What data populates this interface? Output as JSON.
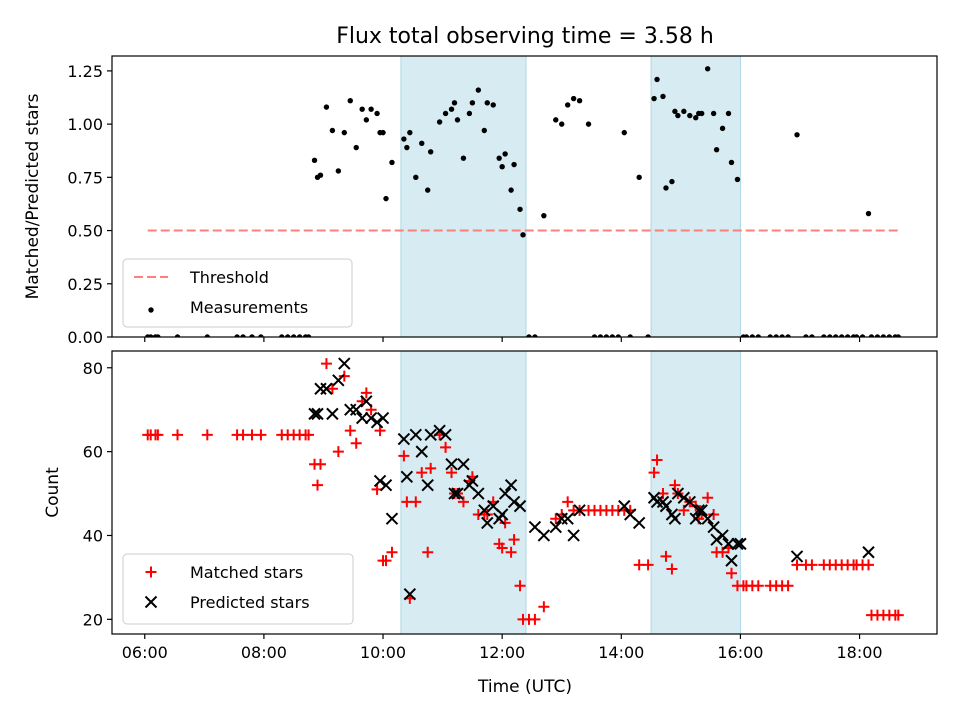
{
  "figure": {
    "title": "Flux total observing time = 3.58 h",
    "xlabel": "Time (UTC)"
  },
  "colors": {
    "shade": "#add8e6",
    "threshold": "#ff7f7f",
    "measurement": "#000000",
    "matched": "#ff0000",
    "predicted": "#000000"
  },
  "chart_data": [
    {
      "type": "scatter",
      "panel": "top",
      "title": "Flux total observing time = 3.58 h",
      "ylabel": "Matched/Predicted stars",
      "xlim": [
        5.45,
        19.3
      ],
      "ylim": [
        0,
        1.32
      ],
      "xticks": [
        6,
        8,
        10,
        12,
        14,
        16,
        18
      ],
      "xticklabels": [],
      "yticks": [
        0,
        0.25,
        0.5,
        0.75,
        1.0,
        1.25
      ],
      "yticklabels": [
        "0.00",
        "0.25",
        "0.50",
        "0.75",
        "1.00",
        "1.25"
      ],
      "shaded_intervals": [
        [
          10.3,
          12.4
        ],
        [
          14.5,
          16.0
        ]
      ],
      "legend": {
        "position": "lower left",
        "entries": [
          "Threshold",
          "Measurements"
        ]
      },
      "threshold": {
        "name": "Threshold",
        "y": 0.5,
        "x": [
          6.05,
          18.65
        ]
      },
      "series": [
        {
          "name": "Measurements",
          "x": [
            6.05,
            6.1,
            6.18,
            6.22,
            6.55,
            7.05,
            7.55,
            7.65,
            7.8,
            7.95,
            8.3,
            8.4,
            8.5,
            8.6,
            8.7,
            8.75,
            8.85,
            8.9,
            8.95,
            9.05,
            9.15,
            9.25,
            9.35,
            9.45,
            9.55,
            9.65,
            9.72,
            9.8,
            9.9,
            9.95,
            10.0,
            10.05,
            10.15,
            10.35,
            10.4,
            10.45,
            10.55,
            10.65,
            10.75,
            10.8,
            10.95,
            11.05,
            11.15,
            11.2,
            11.25,
            11.35,
            11.45,
            11.5,
            11.6,
            11.7,
            11.75,
            11.85,
            11.95,
            12.0,
            12.05,
            12.15,
            12.2,
            12.3,
            12.35,
            12.45,
            12.55,
            12.7,
            12.9,
            13.0,
            13.1,
            13.2,
            13.3,
            13.45,
            13.55,
            13.65,
            13.75,
            13.85,
            13.95,
            14.05,
            14.15,
            14.3,
            14.45,
            14.55,
            14.6,
            14.7,
            14.75,
            14.85,
            14.9,
            14.95,
            15.05,
            15.15,
            15.25,
            15.3,
            15.35,
            15.45,
            15.55,
            15.6,
            15.7,
            15.8,
            15.85,
            15.95,
            16.05,
            16.1,
            16.2,
            16.3,
            16.5,
            16.6,
            16.7,
            16.8,
            16.95,
            17.1,
            17.2,
            17.4,
            17.5,
            17.6,
            17.7,
            17.8,
            17.9,
            17.95,
            18.05,
            18.15,
            18.2,
            18.3,
            18.4,
            18.5,
            18.6,
            18.65
          ],
          "y": [
            0,
            0,
            0,
            0,
            0,
            0,
            0,
            0,
            0,
            0,
            0,
            0,
            0,
            0,
            0,
            0,
            0.83,
            0.75,
            0.76,
            1.08,
            0.97,
            0.78,
            0.96,
            1.11,
            0.89,
            1.07,
            1.02,
            1.07,
            1.05,
            0.96,
            0.96,
            0.65,
            0.82,
            0.93,
            0.89,
            0.96,
            0.75,
            0.91,
            0.69,
            0.87,
            1.01,
            1.05,
            1.07,
            1.1,
            1.02,
            0.84,
            1.05,
            1.1,
            1.16,
            0.97,
            1.1,
            1.09,
            0.84,
            0.8,
            0.86,
            0.69,
            0.81,
            0.6,
            0.48,
            0,
            0,
            0.57,
            1.02,
            1.0,
            1.09,
            1.12,
            1.11,
            1.0,
            0,
            0,
            0,
            0,
            0,
            0.96,
            0,
            0.75,
            0,
            1.12,
            1.21,
            1.13,
            0.7,
            0.73,
            1.06,
            1.04,
            1.06,
            1.04,
            1.03,
            1.05,
            1.05,
            1.26,
            1.05,
            0.88,
            0.98,
            1.05,
            0.82,
            0.74,
            0,
            0,
            0,
            0,
            0,
            0,
            0,
            0,
            0.95,
            0,
            0,
            0,
            0,
            0,
            0,
            0,
            0,
            0,
            0,
            0.58,
            0,
            0,
            0,
            0,
            0,
            0
          ]
        }
      ]
    },
    {
      "type": "scatter",
      "panel": "bottom",
      "xlabel": "Time (UTC)",
      "ylabel": "Count",
      "xlim": [
        5.45,
        19.3
      ],
      "ylim": [
        16.5,
        84
      ],
      "xticks": [
        6,
        8,
        10,
        12,
        14,
        16,
        18
      ],
      "xticklabels": [
        "06:00",
        "08:00",
        "10:00",
        "12:00",
        "14:00",
        "16:00",
        "18:00"
      ],
      "yticks": [
        20,
        40,
        60,
        80
      ],
      "yticklabels": [
        "20",
        "40",
        "60",
        "80"
      ],
      "shaded_intervals": [
        [
          10.3,
          12.4
        ],
        [
          14.5,
          16.0
        ]
      ],
      "legend": {
        "position": "lower left",
        "entries": [
          "Matched stars",
          "Predicted stars"
        ]
      },
      "series": [
        {
          "name": "Matched stars",
          "marker": "+",
          "x": [
            6.05,
            6.1,
            6.18,
            6.22,
            6.55,
            7.05,
            7.55,
            7.65,
            7.8,
            7.95,
            8.3,
            8.4,
            8.5,
            8.6,
            8.7,
            8.75,
            8.85,
            8.9,
            8.95,
            9.05,
            9.15,
            9.25,
            9.35,
            9.45,
            9.55,
            9.65,
            9.72,
            9.8,
            9.9,
            9.95,
            10.0,
            10.05,
            10.15,
            10.35,
            10.4,
            10.45,
            10.55,
            10.65,
            10.75,
            10.8,
            10.95,
            11.05,
            11.15,
            11.2,
            11.25,
            11.35,
            11.45,
            11.5,
            11.6,
            11.7,
            11.75,
            11.85,
            11.95,
            12.0,
            12.05,
            12.15,
            12.2,
            12.3,
            12.35,
            12.45,
            12.55,
            12.7,
            12.9,
            13.0,
            13.1,
            13.2,
            13.3,
            13.45,
            13.55,
            13.65,
            13.75,
            13.85,
            13.95,
            14.05,
            14.15,
            14.3,
            14.45,
            14.55,
            14.6,
            14.7,
            14.75,
            14.85,
            14.9,
            14.95,
            15.05,
            15.15,
            15.25,
            15.3,
            15.35,
            15.45,
            15.55,
            15.6,
            15.7,
            15.8,
            15.85,
            15.95,
            16.05,
            16.1,
            16.2,
            16.3,
            16.5,
            16.6,
            16.7,
            16.8,
            16.95,
            17.1,
            17.2,
            17.4,
            17.5,
            17.6,
            17.7,
            17.8,
            17.9,
            17.95,
            18.05,
            18.15,
            18.2,
            18.3,
            18.4,
            18.5,
            18.6,
            18.65
          ],
          "y": [
            64,
            64,
            64,
            64,
            64,
            64,
            64,
            64,
            64,
            64,
            64,
            64,
            64,
            64,
            64,
            64,
            57,
            52,
            57,
            81,
            75,
            60,
            78,
            65,
            62,
            72,
            74,
            70,
            51,
            65,
            34,
            34,
            36,
            59,
            48,
            25,
            48,
            55,
            36,
            56,
            64,
            61,
            55,
            50,
            50,
            48,
            53,
            54,
            45,
            45,
            45,
            48,
            38,
            37,
            43,
            36,
            39,
            28,
            20,
            20,
            20,
            23,
            44,
            45,
            48,
            46,
            46,
            46,
            46,
            46,
            46,
            46,
            46,
            46,
            46,
            33,
            33,
            55,
            58,
            50,
            35,
            32,
            52,
            50,
            46,
            48,
            47,
            44,
            45,
            49,
            45,
            36,
            36,
            37,
            31,
            28,
            28,
            28,
            28,
            28,
            28,
            28,
            28,
            28,
            33,
            33,
            33,
            33,
            33,
            33,
            33,
            33,
            33,
            33,
            33,
            33,
            21,
            21,
            21,
            21,
            21,
            21
          ]
        },
        {
          "name": "Predicted stars",
          "marker": "x",
          "x": [
            8.85,
            8.9,
            8.95,
            9.05,
            9.15,
            9.25,
            9.35,
            9.45,
            9.55,
            9.65,
            9.72,
            9.8,
            9.9,
            9.95,
            10.0,
            10.05,
            10.15,
            10.35,
            10.4,
            10.45,
            10.55,
            10.65,
            10.75,
            10.8,
            10.95,
            11.05,
            11.15,
            11.2,
            11.25,
            11.35,
            11.45,
            11.5,
            11.6,
            11.7,
            11.75,
            11.85,
            11.95,
            12.0,
            12.05,
            12.15,
            12.2,
            12.3,
            12.55,
            12.7,
            12.9,
            13.0,
            13.1,
            13.2,
            13.3,
            14.05,
            14.15,
            14.3,
            14.55,
            14.6,
            14.7,
            14.75,
            14.85,
            14.9,
            14.95,
            15.05,
            15.15,
            15.25,
            15.3,
            15.35,
            15.45,
            15.55,
            15.6,
            15.7,
            15.8,
            15.85,
            15.95,
            16.0,
            16.95,
            18.15
          ],
          "y": [
            69,
            69,
            75,
            75,
            69,
            77,
            81,
            70,
            70,
            68,
            72,
            68,
            67,
            53,
            68,
            52,
            44,
            63,
            54,
            26,
            64,
            60,
            52,
            64,
            65,
            64,
            57,
            50,
            50,
            57,
            52,
            53,
            50,
            46,
            43,
            47,
            44,
            45,
            50,
            52,
            48,
            47,
            42,
            40,
            42,
            44,
            44,
            40,
            46,
            47,
            45,
            43,
            49,
            48,
            48,
            47,
            45,
            44,
            50,
            49,
            48,
            44,
            46,
            46,
            44,
            42,
            39,
            40,
            38,
            34,
            38,
            38,
            35,
            36
          ]
        }
      ]
    }
  ]
}
